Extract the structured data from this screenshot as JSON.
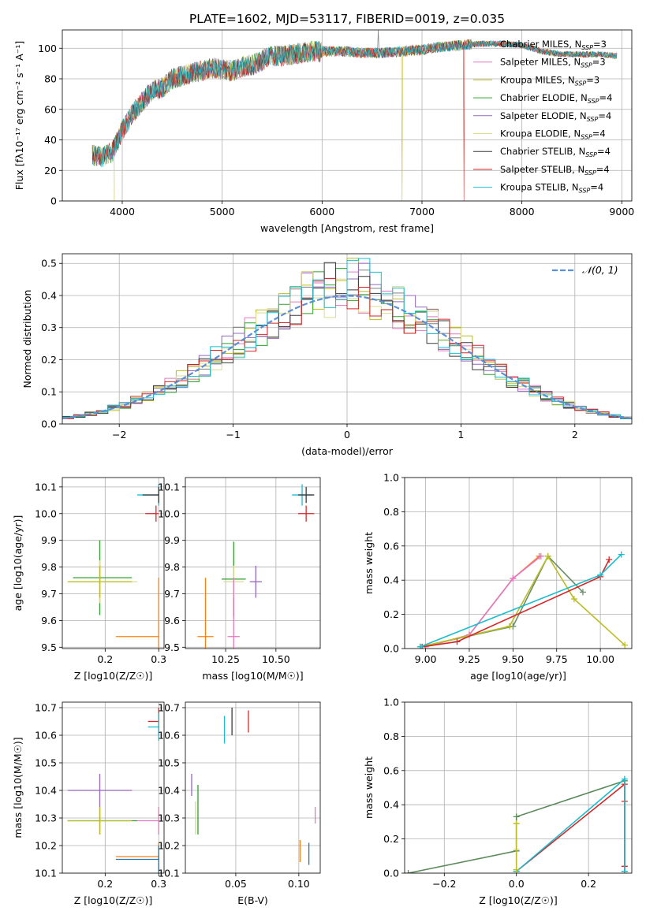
{
  "title": "PLATE=1602, MJD=53117, FIBERID=0019, z=0.035",
  "colors": [
    "#7f7f7f",
    "#e377c2",
    "#bcbd22",
    "#2ca02c",
    "#9467bd",
    "#dbdb8d",
    "#3a3a3a",
    "#d62728",
    "#17becf"
  ],
  "legend_spectrum": [
    {
      "label": "Chabrier MILES, N",
      "sub": "SSP",
      "suffix": "=3",
      "color": "#7f7f7f"
    },
    {
      "label": "Salpeter MILES, N",
      "sub": "SSP",
      "suffix": "=3",
      "color": "#e377c2"
    },
    {
      "label": "Kroupa MILES, N",
      "sub": "SSP",
      "suffix": "=3",
      "color": "#bcbd22"
    },
    {
      "label": "Chabrier ELODIE, N",
      "sub": "SSP",
      "suffix": "=4",
      "color": "#2ca02c"
    },
    {
      "label": "Salpeter ELODIE, N",
      "sub": "SSP",
      "suffix": "=4",
      "color": "#9467bd"
    },
    {
      "label": "Kroupa ELODIE, N",
      "sub": "SSP",
      "suffix": "=4",
      "color": "#dbdb8d"
    },
    {
      "label": "Chabrier STELIB, N",
      "sub": "SSP",
      "suffix": "=4",
      "color": "#3a3a3a"
    },
    {
      "label": "Salpeter STELIB, N",
      "sub": "SSP",
      "suffix": "=4",
      "color": "#d62728"
    },
    {
      "label": "Kroupa STELIB, N",
      "sub": "SSP",
      "suffix": "=4",
      "color": "#17becf"
    }
  ],
  "chart_data": [
    {
      "id": "spectrum",
      "type": "line",
      "xlabel": "wavelength [Angstrom, rest frame]",
      "ylabel": "Flux [fλ10⁻¹⁷ erg cm⁻² s⁻¹ A⁻¹]",
      "xlim": [
        3400,
        9100
      ],
      "ylim": [
        0,
        112
      ],
      "xticks": [
        4000,
        5000,
        6000,
        7000,
        8000,
        9000
      ],
      "yticks": [
        0,
        20,
        40,
        60,
        80,
        100
      ],
      "continuum_x": [
        3700,
        3800,
        3900,
        4000,
        4100,
        4200,
        4300,
        4400,
        4500,
        4600,
        4700,
        4800,
        4900,
        5000,
        5100,
        5200,
        5300,
        5400,
        5500,
        5600,
        5700,
        5800,
        5900,
        6000,
        6200,
        6400,
        6600,
        6800,
        7000,
        7200,
        7400,
        7600,
        7800,
        8000,
        8200,
        8400,
        8600,
        8800,
        8950
      ],
      "continuum_y": [
        30,
        29,
        32,
        46,
        57,
        65,
        72,
        74,
        80,
        82,
        84,
        85,
        87,
        86,
        85,
        88,
        89,
        92,
        95,
        95,
        96,
        97,
        98,
        98,
        98,
        97,
        97,
        98,
        99,
        101,
        102,
        103,
        103,
        102,
        98,
        96,
        96,
        96,
        95
      ]
    },
    {
      "id": "residuals",
      "type": "step",
      "xlabel": "(data-model)/error",
      "ylabel": "Normed distribution",
      "xlim": [
        -2.5,
        2.5
      ],
      "ylim": [
        0,
        0.53
      ],
      "xticks": [
        -2,
        -1,
        0,
        1,
        2
      ],
      "yticks": [
        0,
        0.1,
        0.2,
        0.3,
        0.4,
        0.5
      ],
      "legend": "𝒩(0, 1)"
    },
    {
      "id": "age_vs_Z",
      "type": "errorbar",
      "xlabel": "Z [log10(Z/Z☉)]",
      "ylabel": "age  [log10(age/yr)]",
      "xlim": [
        0.12,
        0.31
      ],
      "ylim": [
        9.495,
        10.135
      ],
      "xticks": [
        0.2,
        0.3
      ],
      "yticks": [
        9.5,
        9.6,
        9.7,
        9.8,
        9.9,
        10.0,
        10.1
      ],
      "points": [
        {
          "x": 0.3,
          "y": 10.07,
          "xerr": [
            0.04,
            0
          ],
          "yerr": 0.04,
          "color": "#17becf"
        },
        {
          "x": 0.3,
          "y": 10.07,
          "xerr": [
            0.03,
            0
          ],
          "yerr": 0.03,
          "color": "#3a3a3a"
        },
        {
          "x": 0.295,
          "y": 10.0,
          "xerr": [
            0.02,
            0.005
          ],
          "yerr": 0.03,
          "color": "#d62728"
        },
        {
          "x": 0.19,
          "y": 9.76,
          "xerr": [
            0.05,
            0.06
          ],
          "yerr": 0.14,
          "color": "#2ca02c"
        },
        {
          "x": 0.19,
          "y": 9.745,
          "xerr": [
            0.06,
            0.07
          ],
          "yerr": 0.08,
          "color": "#dbdb8d"
        },
        {
          "x": 0.19,
          "y": 9.745,
          "xerr": [
            0.06,
            0.06
          ],
          "yerr": 0.06,
          "color": "#bcbd22"
        },
        {
          "x": 0.3,
          "y": 9.54,
          "xerr": [
            0.08,
            0
          ],
          "yerr": 0.22,
          "color": "#ff7f0e"
        }
      ]
    },
    {
      "id": "age_vs_mass",
      "type": "errorbar",
      "xlabel": "mass [log10(M/M☉)]",
      "ylabel": "",
      "xlim": [
        10.05,
        10.72
      ],
      "ylim": [
        9.495,
        10.135
      ],
      "xticks": [
        10.25,
        10.5
      ],
      "yticks": [
        9.5,
        9.6,
        9.7,
        9.8,
        9.9,
        10.0,
        10.1
      ],
      "points": [
        {
          "x": 10.63,
          "y": 10.07,
          "xerr": 0.05,
          "yerr": 0.04,
          "color": "#17becf"
        },
        {
          "x": 10.65,
          "y": 10.07,
          "xerr": 0.04,
          "yerr": 0.03,
          "color": "#3a3a3a"
        },
        {
          "x": 10.65,
          "y": 10.0,
          "xerr": 0.04,
          "yerr": 0.03,
          "color": "#d62728"
        },
        {
          "x": 10.29,
          "y": 9.755,
          "xerr": 0.06,
          "yerr": 0.14,
          "color": "#2ca02c"
        },
        {
          "x": 10.4,
          "y": 9.745,
          "xerr": 0.03,
          "yerr": 0.06,
          "color": "#9467bd"
        },
        {
          "x": 10.29,
          "y": 9.745,
          "xerr": 0.05,
          "yerr": 0.06,
          "color": "#dbdb8d"
        },
        {
          "x": 10.15,
          "y": 9.54,
          "xerr": 0.04,
          "yerr": 0.22,
          "color": "#ff7f0e"
        },
        {
          "x": 10.29,
          "y": 9.54,
          "xerr": 0.03,
          "yerr": 0.22,
          "color": "#e377c2"
        }
      ]
    },
    {
      "id": "mass_weight_age",
      "type": "line",
      "xlabel": "age  [log10(age/yr)]",
      "ylabel": "mass weight",
      "xlim": [
        8.88,
        10.18
      ],
      "ylim": [
        0,
        1.0
      ],
      "xticks": [
        9.0,
        9.25,
        9.5,
        9.75,
        10.0
      ],
      "yticks": [
        0,
        0.2,
        0.4,
        0.6,
        0.8,
        1.0
      ],
      "series": [
        {
          "color": "#ff7f0e",
          "x": [
            9.0,
            9.25,
            9.5,
            9.65
          ],
          "y": [
            0.01,
            0.08,
            0.41,
            0.54
          ]
        },
        {
          "color": "#e377c2",
          "x": [
            9.0,
            9.25,
            9.5,
            9.66
          ],
          "y": [
            0.01,
            0.08,
            0.41,
            0.54
          ]
        },
        {
          "color": "#6b8e6b",
          "x": [
            8.97,
            9.5,
            9.7,
            9.9
          ],
          "y": [
            0.01,
            0.13,
            0.54,
            0.33
          ]
        },
        {
          "color": "#bcbd22",
          "x": [
            8.97,
            9.48,
            9.7,
            9.85,
            10.14
          ],
          "y": [
            0.01,
            0.13,
            0.54,
            0.29,
            0.02
          ]
        },
        {
          "color": "#d62728",
          "x": [
            8.98,
            9.18,
            10.0,
            10.05
          ],
          "y": [
            0.01,
            0.04,
            0.42,
            0.52
          ]
        },
        {
          "color": "#17becf",
          "x": [
            8.97,
            10.0,
            10.12
          ],
          "y": [
            0.01,
            0.43,
            0.55
          ]
        }
      ]
    },
    {
      "id": "mass_vs_Z",
      "type": "errorbar",
      "xlabel": "Z [log10(Z/Z☉)]",
      "ylabel": "mass [log10(M/M☉)]",
      "xlim": [
        0.12,
        0.31
      ],
      "ylim": [
        10.1,
        10.72
      ],
      "xticks": [
        0.2,
        0.3
      ],
      "yticks": [
        10.1,
        10.2,
        10.3,
        10.4,
        10.5,
        10.6,
        10.7
      ],
      "points": [
        {
          "x": 0.3,
          "y": 10.65,
          "xerr": [
            0.02,
            0
          ],
          "yerr": 0.05,
          "color": "#d62728"
        },
        {
          "x": 0.3,
          "y": 10.63,
          "xerr": [
            0.02,
            0
          ],
          "yerr": 0.05,
          "color": "#17becf"
        },
        {
          "x": 0.19,
          "y": 10.4,
          "xerr": [
            0.06,
            0.06
          ],
          "yerr": 0.06,
          "color": "#9467bd"
        },
        {
          "x": 0.19,
          "y": 10.29,
          "xerr": [
            0.06,
            0.07
          ],
          "yerr": 0.05,
          "color": "#2ca02c"
        },
        {
          "x": 0.19,
          "y": 10.29,
          "xerr": [
            0.06,
            0.06
          ],
          "yerr": 0.05,
          "color": "#bcbd22"
        },
        {
          "x": 0.3,
          "y": 10.29,
          "xerr": [
            0.04,
            0
          ],
          "yerr": 0.05,
          "color": "#e377c2"
        },
        {
          "x": 0.3,
          "y": 10.16,
          "xerr": [
            0.08,
            0
          ],
          "yerr": 0.05,
          "color": "#ff7f0e"
        },
        {
          "x": 0.3,
          "y": 10.15,
          "xerr": [
            0.08,
            0
          ],
          "yerr": 0.05,
          "color": "#1f77b4"
        }
      ]
    },
    {
      "id": "mass_vs_ebv",
      "type": "errorbar",
      "xlabel": "E(B-V)",
      "ylabel": "",
      "xlim": [
        0.01,
        0.117
      ],
      "ylim": [
        10.1,
        10.72
      ],
      "xticks": [
        0.05,
        0.1
      ],
      "yticks": [
        10.1,
        10.2,
        10.3,
        10.4,
        10.5,
        10.6,
        10.7
      ],
      "points": [
        {
          "x": 0.047,
          "y": 10.65,
          "yerr": 0.05,
          "color": "#3a3a3a"
        },
        {
          "x": 0.06,
          "y": 10.65,
          "yerr": 0.04,
          "color": "#d62728"
        },
        {
          "x": 0.041,
          "y": 10.62,
          "yerr": 0.05,
          "color": "#17becf"
        },
        {
          "x": 0.015,
          "y": 10.42,
          "yerr": 0.04,
          "color": "#9467bd"
        },
        {
          "x": 0.02,
          "y": 10.33,
          "yerr": 0.09,
          "color": "#2ca02c"
        },
        {
          "x": 0.018,
          "y": 10.3,
          "yerr": 0.06,
          "color": "#dbdb8d"
        },
        {
          "x": 0.113,
          "y": 10.31,
          "yerr": 0.03,
          "color": "#e377c2"
        },
        {
          "x": 0.101,
          "y": 10.18,
          "yerr": 0.04,
          "color": "#ff7f0e"
        },
        {
          "x": 0.108,
          "y": 10.17,
          "yerr": 0.04,
          "color": "#1f77b4"
        }
      ]
    },
    {
      "id": "mass_weight_Z",
      "type": "line",
      "xlabel": "Z [log10(Z/Z☉)]",
      "ylabel": "mass weight",
      "xlim": [
        -0.31,
        0.32
      ],
      "ylim": [
        0,
        1.0
      ],
      "xticks": [
        -0.2,
        0.0,
        0.2
      ],
      "yticks": [
        0,
        0.2,
        0.4,
        0.6,
        0.8,
        1.0
      ],
      "series": [
        {
          "color": "#5b8a5b",
          "x": [
            -0.3,
            0.0,
            0.0,
            0.3,
            0.3
          ],
          "y": [
            0.0,
            0.13,
            0.33,
            0.54,
            0.01
          ]
        },
        {
          "color": "#d62728",
          "x": [
            0.0,
            0.3,
            0.3,
            0.3
          ],
          "y": [
            0.01,
            0.52,
            0.42,
            0.04
          ]
        },
        {
          "color": "#17becf",
          "x": [
            0.0,
            0.3,
            0.3
          ],
          "y": [
            0.01,
            0.55,
            0.01
          ]
        },
        {
          "color": "#dbdb8d",
          "x": [
            0.0,
            0.0,
            0.0
          ],
          "y": [
            0.29,
            0.14,
            0.02
          ]
        },
        {
          "color": "#bcbd22",
          "x": [
            0.0,
            0.0
          ],
          "y": [
            0.02,
            0.29
          ]
        }
      ]
    }
  ]
}
